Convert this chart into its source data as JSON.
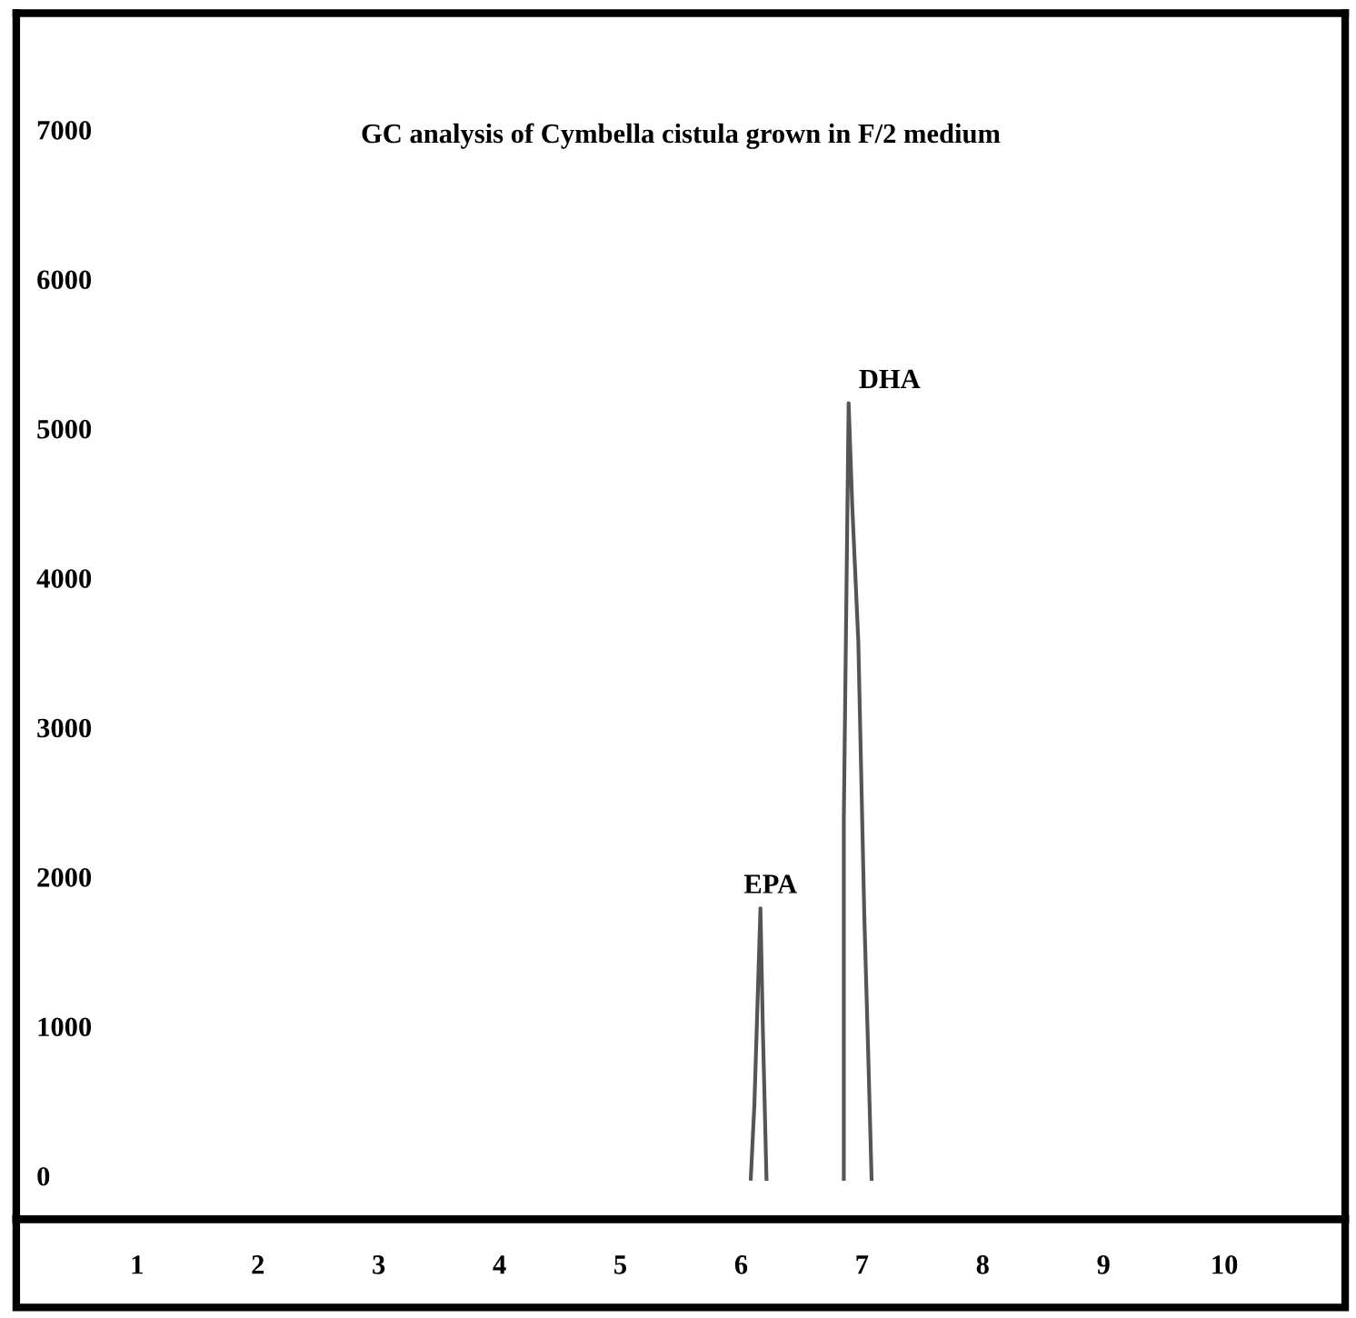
{
  "chart_data": {
    "type": "line",
    "title": "GC analysis of Cymbella cistula grown in F/2 medium",
    "series": [
      {
        "color": "#555555",
        "x": [
          6.08,
          6.11,
          6.16,
          6.18,
          6.21,
          6.5,
          6.85,
          6.85,
          6.89,
          6.92,
          6.97,
          7.02,
          7.05,
          7.08
        ],
        "values": [
          0,
          500,
          1810,
          1000,
          0,
          null,
          0,
          2400,
          5190,
          4500,
          3600,
          1750,
          900,
          0
        ]
      }
    ],
    "xlim": [
      0,
      11
    ],
    "xticks": [
      1,
      2,
      3,
      4,
      5,
      6,
      7,
      8,
      9,
      10
    ],
    "ylim": [
      -270,
      7800
    ],
    "yticks": [
      0,
      1000,
      2000,
      3000,
      4000,
      5000,
      6000,
      7000
    ],
    "grid": false,
    "legend": false,
    "marker": "none",
    "line_style": "solid",
    "annotations": [
      {
        "text": "EPA",
        "x": 6.16,
        "y": 1810
      },
      {
        "text": "DHA",
        "x": 6.89,
        "y": 5190
      }
    ]
  }
}
